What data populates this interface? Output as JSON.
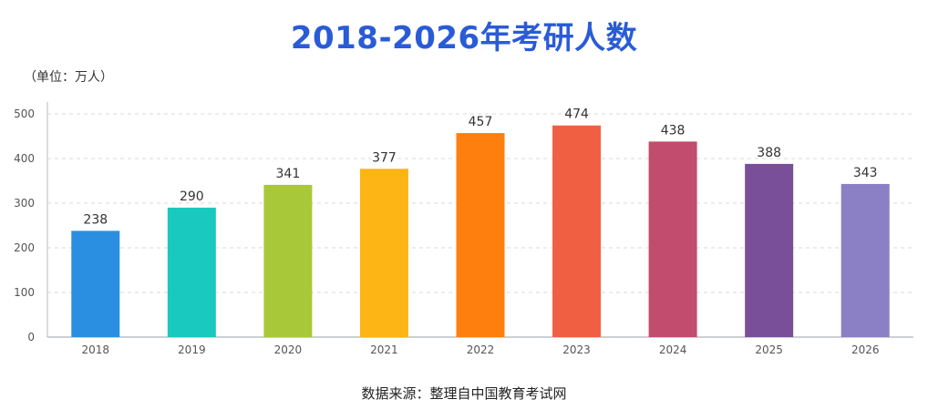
{
  "title": "2018-2026年考研人数",
  "unit_label": "（单位：万人）",
  "source": "数据来源：整理自中国教育考试网",
  "chart_data": {
    "type": "bar",
    "title": "2018-2026年考研人数",
    "xlabel": "",
    "ylabel": "（单位：万人）",
    "categories": [
      "2018",
      "2019",
      "2020",
      "2021",
      "2022",
      "2023",
      "2024",
      "2025",
      "2026"
    ],
    "values": [
      238,
      290,
      341,
      377,
      457,
      474,
      438,
      388,
      343
    ],
    "ylim": [
      0,
      500
    ],
    "yticks": [
      0,
      100,
      200,
      300,
      400,
      500
    ],
    "grid": true,
    "legend": "none",
    "colors": [
      "#2a8fe0",
      "#19c9c0",
      "#a8c83a",
      "#fdb515",
      "#fe7f0e",
      "#f15f43",
      "#c24c6d",
      "#7a4f9a",
      "#8b7fc6"
    ]
  }
}
